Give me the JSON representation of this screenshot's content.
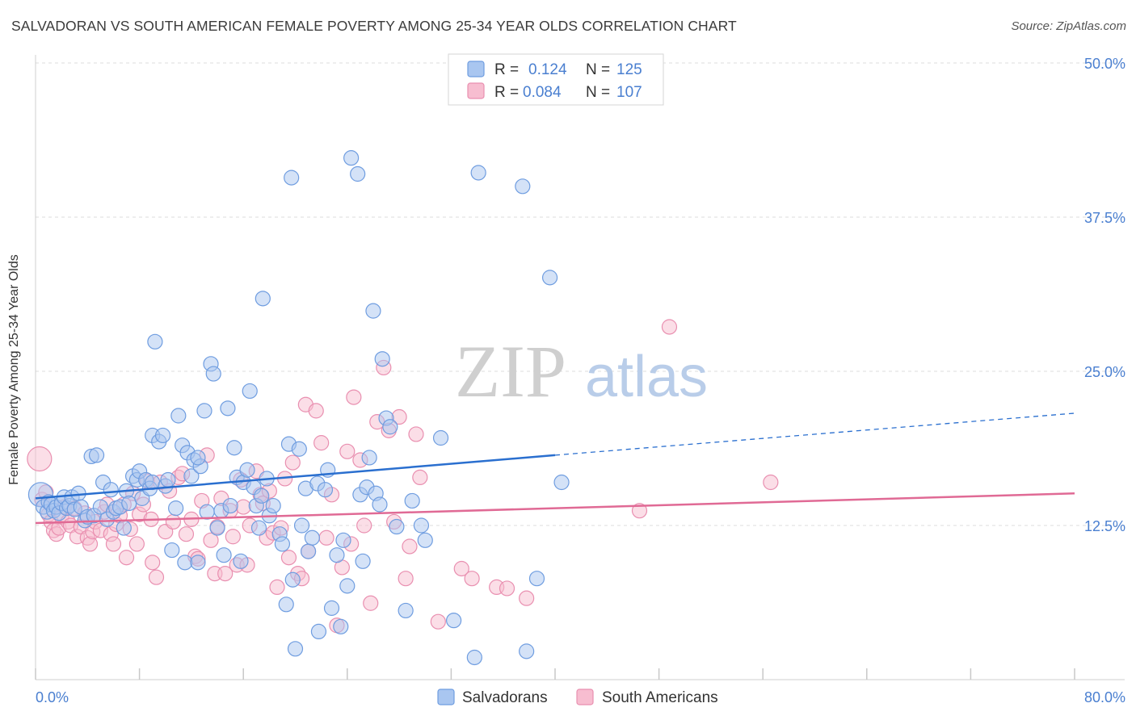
{
  "title": "SALVADORAN VS SOUTH AMERICAN FEMALE POVERTY AMONG 25-34 YEAR OLDS CORRELATION CHART",
  "source": "Source: ZipAtlas.com",
  "watermark": {
    "zip": "ZIP",
    "atlas": "atlas"
  },
  "colors": {
    "blue_fill": "#a9c6f0",
    "blue_stroke": "#6f9de0",
    "blue_line": "#2a6fcf",
    "pink_fill": "#f7bdd0",
    "pink_stroke": "#e98fb0",
    "pink_line": "#e06a95",
    "axis_text": "#4a7fd0",
    "grid": "#dddddd"
  },
  "legend": {
    "rows": [
      {
        "r_label": "R =",
        "r_value": "0.124",
        "n_label": "N =",
        "n_value": "125"
      },
      {
        "r_label": "R =",
        "r_value": "0.084",
        "n_label": "N =",
        "n_value": "107"
      }
    ]
  },
  "bottom_legend": [
    "Salvadorans",
    "South Americans"
  ],
  "chart_data": {
    "type": "scatter",
    "title": "SALVADORAN VS SOUTH AMERICAN FEMALE POVERTY AMONG 25-34 YEAR OLDS CORRELATION CHART",
    "xlabel": "",
    "ylabel": "Female Poverty Among 25-34 Year Olds",
    "xlim": [
      0,
      80
    ],
    "ylim": [
      0,
      50
    ],
    "x_tick_labels": [
      "0.0%",
      "80.0%"
    ],
    "y_tick_values": [
      12.5,
      25.0,
      37.5,
      50.0
    ],
    "y_tick_labels": [
      "12.5%",
      "25.0%",
      "37.5%",
      "50.0%"
    ],
    "grid": true,
    "legend_position": "top-center",
    "series": [
      {
        "name": "Salvadorans",
        "r": 0.124,
        "n": 125,
        "trend": {
          "x0": 0,
          "y0": 14.7,
          "x1": 40,
          "y1": 18.2,
          "dashed_to_x": 80,
          "dashed_to_y": 21.6
        },
        "points": [
          [
            0.4,
            15.0
          ],
          [
            0.6,
            14.0
          ],
          [
            0.9,
            13.6
          ],
          [
            1.0,
            14.4
          ],
          [
            1.2,
            14.2
          ],
          [
            1.4,
            13.7
          ],
          [
            1.6,
            14.0
          ],
          [
            1.8,
            13.5
          ],
          [
            2.0,
            14.3
          ],
          [
            2.2,
            14.8
          ],
          [
            2.4,
            13.9
          ],
          [
            2.6,
            14.1
          ],
          [
            2.8,
            14.8
          ],
          [
            3.0,
            13.8
          ],
          [
            3.3,
            15.1
          ],
          [
            3.5,
            14.0
          ],
          [
            3.8,
            12.9
          ],
          [
            4.0,
            13.2
          ],
          [
            4.3,
            18.1
          ],
          [
            4.5,
            13.3
          ],
          [
            4.7,
            18.2
          ],
          [
            5.0,
            14.0
          ],
          [
            5.2,
            16.0
          ],
          [
            5.5,
            13.0
          ],
          [
            5.8,
            15.4
          ],
          [
            6.0,
            13.6
          ],
          [
            6.2,
            13.9
          ],
          [
            6.5,
            14.0
          ],
          [
            6.8,
            12.3
          ],
          [
            7.0,
            15.3
          ],
          [
            7.2,
            14.3
          ],
          [
            7.5,
            16.5
          ],
          [
            7.8,
            16.2
          ],
          [
            8.0,
            16.9
          ],
          [
            8.2,
            14.7
          ],
          [
            8.5,
            16.2
          ],
          [
            8.8,
            15.5
          ],
          [
            9.0,
            16.0
          ],
          [
            9.2,
            27.4
          ],
          [
            9.0,
            19.8
          ],
          [
            9.5,
            19.3
          ],
          [
            9.8,
            19.8
          ],
          [
            10.0,
            15.7
          ],
          [
            10.2,
            16.2
          ],
          [
            10.5,
            10.5
          ],
          [
            10.8,
            13.9
          ],
          [
            11.0,
            21.4
          ],
          [
            11.3,
            19.0
          ],
          [
            11.5,
            9.5
          ],
          [
            11.7,
            18.4
          ],
          [
            12.0,
            16.5
          ],
          [
            12.2,
            17.8
          ],
          [
            12.5,
            9.5
          ],
          [
            12.7,
            17.3
          ],
          [
            13.0,
            21.8
          ],
          [
            13.2,
            13.6
          ],
          [
            13.5,
            25.6
          ],
          [
            13.7,
            24.8
          ],
          [
            14.0,
            12.3
          ],
          [
            14.3,
            13.7
          ],
          [
            14.5,
            10.1
          ],
          [
            14.8,
            22.0
          ],
          [
            15.0,
            14.1
          ],
          [
            15.3,
            18.8
          ],
          [
            15.5,
            16.4
          ],
          [
            15.8,
            9.6
          ],
          [
            16.0,
            16.0
          ],
          [
            16.3,
            17.0
          ],
          [
            16.5,
            23.4
          ],
          [
            16.8,
            15.6
          ],
          [
            17.0,
            14.1
          ],
          [
            17.2,
            12.3
          ],
          [
            17.5,
            30.9
          ],
          [
            17.8,
            16.3
          ],
          [
            18.0,
            13.3
          ],
          [
            18.3,
            14.1
          ],
          [
            18.8,
            11.8
          ],
          [
            19.0,
            11.0
          ],
          [
            19.3,
            6.1
          ],
          [
            19.5,
            19.1
          ],
          [
            19.7,
            40.7
          ],
          [
            19.8,
            8.1
          ],
          [
            20.0,
            2.5
          ],
          [
            20.3,
            18.7
          ],
          [
            20.5,
            12.5
          ],
          [
            20.8,
            15.5
          ],
          [
            21.0,
            10.4
          ],
          [
            21.3,
            11.5
          ],
          [
            21.7,
            15.9
          ],
          [
            21.8,
            3.9
          ],
          [
            22.3,
            15.4
          ],
          [
            22.5,
            17.0
          ],
          [
            22.8,
            5.8
          ],
          [
            23.2,
            10.1
          ],
          [
            23.5,
            4.3
          ],
          [
            23.7,
            11.3
          ],
          [
            24.0,
            7.6
          ],
          [
            24.3,
            42.3
          ],
          [
            24.8,
            41.0
          ],
          [
            25.0,
            15.0
          ],
          [
            25.2,
            9.6
          ],
          [
            25.5,
            15.6
          ],
          [
            25.7,
            18.0
          ],
          [
            26.0,
            29.9
          ],
          [
            26.2,
            15.1
          ],
          [
            26.5,
            14.2
          ],
          [
            26.7,
            26.0
          ],
          [
            27.0,
            21.2
          ],
          [
            27.3,
            20.5
          ],
          [
            27.8,
            12.4
          ],
          [
            28.5,
            5.6
          ],
          [
            29.0,
            14.5
          ],
          [
            29.7,
            12.5
          ],
          [
            30.0,
            11.3
          ],
          [
            31.2,
            19.6
          ],
          [
            32.2,
            4.8
          ],
          [
            33.8,
            1.8
          ],
          [
            34.1,
            41.1
          ],
          [
            37.5,
            40.0
          ],
          [
            37.8,
            2.3
          ],
          [
            38.6,
            8.2
          ],
          [
            39.6,
            32.6
          ],
          [
            40.5,
            16.0
          ],
          [
            12.5,
            18.0
          ],
          [
            17.4,
            14.9
          ]
        ]
      },
      {
        "name": "South Americans",
        "r": 0.084,
        "n": 107,
        "trend": {
          "x0": 0,
          "y0": 12.7,
          "x1": 80,
          "y1": 15.1
        },
        "points": [
          [
            0.3,
            17.9
          ],
          [
            0.5,
            14.6
          ],
          [
            0.8,
            15.2
          ],
          [
            1.0,
            13.4
          ],
          [
            1.2,
            12.8
          ],
          [
            1.4,
            12.1
          ],
          [
            1.6,
            11.8
          ],
          [
            1.8,
            12.3
          ],
          [
            2.0,
            13.2
          ],
          [
            2.2,
            14.0
          ],
          [
            2.5,
            12.8
          ],
          [
            2.7,
            12.5
          ],
          [
            3.0,
            13.9
          ],
          [
            3.2,
            11.6
          ],
          [
            3.5,
            12.4
          ],
          [
            3.8,
            13.5
          ],
          [
            4.0,
            11.5
          ],
          [
            4.2,
            11.0
          ],
          [
            4.4,
            12.0
          ],
          [
            4.6,
            12.8
          ],
          [
            5.0,
            12.1
          ],
          [
            5.3,
            13.6
          ],
          [
            5.5,
            14.2
          ],
          [
            5.8,
            11.8
          ],
          [
            6.0,
            11.0
          ],
          [
            6.2,
            12.6
          ],
          [
            6.5,
            13.3
          ],
          [
            6.8,
            14.2
          ],
          [
            7.0,
            9.9
          ],
          [
            7.3,
            12.2
          ],
          [
            7.5,
            15.1
          ],
          [
            7.8,
            11.0
          ],
          [
            8.0,
            13.4
          ],
          [
            8.3,
            14.2
          ],
          [
            8.6,
            16.1
          ],
          [
            8.9,
            13.0
          ],
          [
            9.0,
            9.5
          ],
          [
            9.3,
            8.3
          ],
          [
            9.6,
            16.0
          ],
          [
            10.0,
            12.0
          ],
          [
            10.3,
            15.3
          ],
          [
            10.6,
            12.8
          ],
          [
            11.0,
            16.4
          ],
          [
            11.3,
            16.7
          ],
          [
            11.6,
            11.8
          ],
          [
            12.0,
            13.0
          ],
          [
            12.3,
            10.0
          ],
          [
            12.5,
            9.8
          ],
          [
            12.8,
            14.5
          ],
          [
            13.2,
            18.2
          ],
          [
            13.5,
            11.3
          ],
          [
            13.8,
            8.6
          ],
          [
            14.0,
            12.4
          ],
          [
            14.3,
            14.7
          ],
          [
            14.6,
            8.6
          ],
          [
            15.0,
            13.7
          ],
          [
            15.2,
            11.6
          ],
          [
            15.5,
            9.3
          ],
          [
            15.8,
            16.2
          ],
          [
            16.0,
            14.0
          ],
          [
            16.3,
            9.3
          ],
          [
            16.5,
            12.5
          ],
          [
            17.0,
            16.9
          ],
          [
            17.3,
            15.0
          ],
          [
            17.5,
            14.3
          ],
          [
            17.8,
            11.5
          ],
          [
            18.0,
            15.3
          ],
          [
            18.3,
            11.9
          ],
          [
            18.6,
            7.5
          ],
          [
            18.9,
            12.3
          ],
          [
            19.2,
            16.3
          ],
          [
            19.5,
            9.9
          ],
          [
            19.8,
            17.6
          ],
          [
            20.2,
            8.6
          ],
          [
            20.5,
            8.2
          ],
          [
            20.8,
            22.3
          ],
          [
            21.0,
            10.4
          ],
          [
            21.6,
            21.8
          ],
          [
            22.0,
            19.2
          ],
          [
            22.4,
            11.5
          ],
          [
            22.8,
            15.0
          ],
          [
            23.2,
            4.4
          ],
          [
            23.6,
            9.1
          ],
          [
            24.0,
            18.5
          ],
          [
            24.3,
            11.0
          ],
          [
            24.5,
            22.9
          ],
          [
            25.0,
            17.8
          ],
          [
            25.3,
            12.5
          ],
          [
            25.8,
            6.2
          ],
          [
            26.3,
            20.9
          ],
          [
            26.8,
            25.3
          ],
          [
            27.2,
            20.2
          ],
          [
            27.6,
            12.8
          ],
          [
            28.0,
            21.3
          ],
          [
            28.5,
            8.2
          ],
          [
            28.8,
            10.8
          ],
          [
            29.3,
            19.9
          ],
          [
            29.6,
            16.4
          ],
          [
            31.0,
            4.7
          ],
          [
            32.8,
            9.0
          ],
          [
            33.6,
            8.2
          ],
          [
            35.5,
            7.5
          ],
          [
            36.3,
            7.4
          ],
          [
            37.8,
            6.6
          ],
          [
            46.5,
            13.7
          ],
          [
            56.6,
            16.0
          ],
          [
            48.8,
            28.6
          ]
        ]
      }
    ]
  }
}
